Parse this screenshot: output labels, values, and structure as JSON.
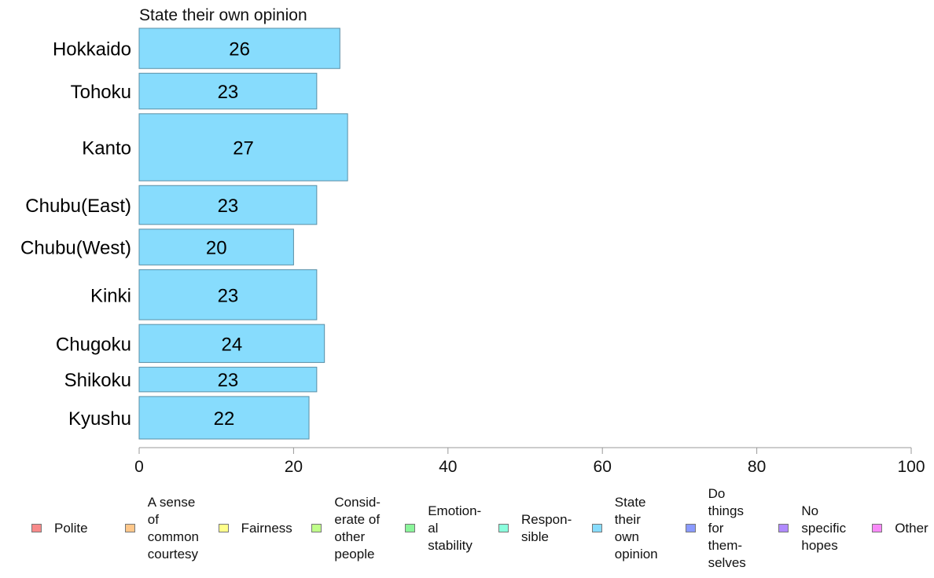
{
  "chart_data": {
    "type": "bar",
    "orientation": "horizontal",
    "title": "State their own opinion",
    "categories": [
      "Hokkaido",
      "Tohoku",
      "Kanto",
      "Chubu(East)",
      "Chubu(West)",
      "Kinki",
      "Chugoku",
      "Shikoku",
      "Kyushu"
    ],
    "values": [
      26,
      23,
      27,
      23,
      20,
      23,
      24,
      23,
      22
    ],
    "relative_widths": [
      0.9,
      0.8,
      1.5,
      0.87,
      0.8,
      1.12,
      0.85,
      0.55,
      0.95
    ],
    "xlim": [
      0,
      100
    ],
    "xticks": [
      0,
      20,
      40,
      60,
      80,
      100
    ],
    "bar_color": "#87DCFD",
    "bar_edge_color": "#5a8fa6",
    "grid": false,
    "legend_position": "bottom"
  },
  "legend": {
    "items": [
      {
        "label": "Polite",
        "color": "#F88A8A"
      },
      {
        "label": "A sense\nof\ncommon\ncourtesy",
        "color": "#FFC78A"
      },
      {
        "label": "Fairness",
        "color": "#FFFF8A"
      },
      {
        "label": "Consid-\nerate of\nother\npeople",
        "color": "#C0FF8A"
      },
      {
        "label": "Emotion-\nal\nstability",
        "color": "#8AF59A"
      },
      {
        "label": "Respon-\nsible",
        "color": "#8AFFDD"
      },
      {
        "label": "State\ntheir\nown\nopinion",
        "color": "#87DCFD"
      },
      {
        "label": "Do\nthings\nfor\nthem-\nselves",
        "color": "#8A9AFF"
      },
      {
        "label": "No\nspecific\nhopes",
        "color": "#B08AFF"
      },
      {
        "label": "Other",
        "color": "#F88AF8"
      }
    ]
  }
}
